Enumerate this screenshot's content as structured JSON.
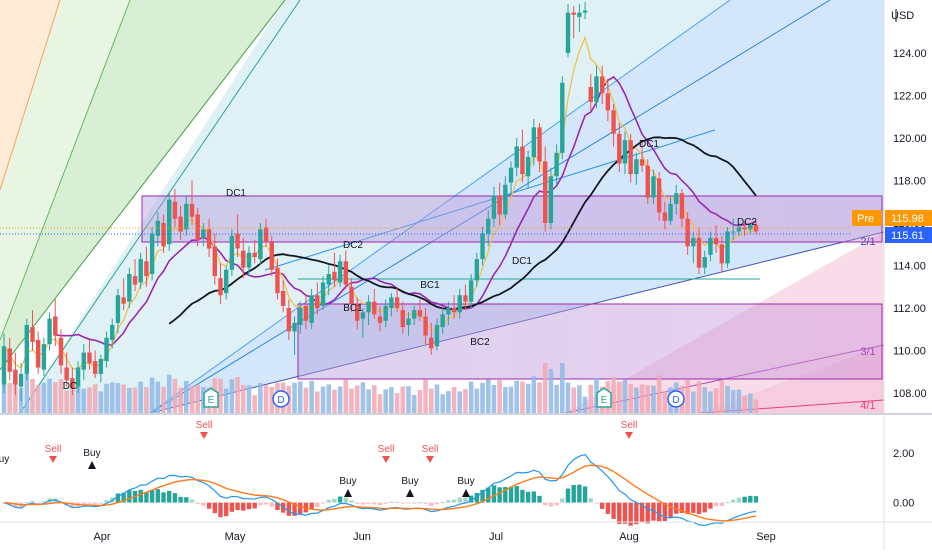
{
  "chart_data": [
    {
      "type": "candlestick",
      "panel": "price",
      "currency_label": "USD",
      "y_axis": {
        "ticks": [
          124.0,
          122.0,
          120.0,
          118.0,
          116.0,
          114.0,
          112.0,
          110.0,
          108.0
        ],
        "range": [
          107.2,
          126.4
        ]
      },
      "x_axis": {
        "labels": [
          "Apr",
          "May",
          "Jun",
          "Jul",
          "Aug",
          "Sep"
        ],
        "bar_count": 133
      },
      "candles": [
        [
          108.4,
          110.8,
          108.0,
          110.2
        ],
        [
          110.1,
          110.6,
          108.6,
          109.0
        ],
        [
          109.1,
          109.9,
          107.9,
          108.4
        ],
        [
          108.3,
          109.4,
          107.6,
          108.9
        ],
        [
          108.9,
          111.5,
          108.6,
          111.2
        ],
        [
          111.1,
          111.9,
          110.0,
          110.4
        ],
        [
          110.5,
          110.9,
          108.9,
          109.2
        ],
        [
          109.1,
          110.6,
          108.8,
          110.3
        ],
        [
          110.3,
          111.8,
          110.0,
          111.5
        ],
        [
          111.6,
          112.4,
          110.2,
          110.7
        ],
        [
          110.6,
          111.0,
          108.9,
          109.3
        ],
        [
          109.2,
          109.9,
          108.3,
          108.6
        ],
        [
          108.7,
          109.2,
          107.9,
          108.2
        ],
        [
          108.3,
          109.5,
          108.0,
          109.2
        ],
        [
          109.1,
          110.3,
          108.6,
          109.9
        ],
        [
          109.9,
          110.5,
          109.1,
          109.4
        ],
        [
          109.5,
          110.0,
          108.7,
          108.9
        ],
        [
          108.9,
          109.8,
          108.5,
          109.6
        ],
        [
          109.5,
          110.9,
          109.2,
          110.6
        ],
        [
          110.5,
          111.5,
          110.1,
          111.2
        ],
        [
          111.3,
          112.9,
          110.8,
          112.6
        ],
        [
          112.5,
          113.4,
          111.9,
          112.2
        ],
        [
          112.3,
          113.9,
          112.0,
          113.6
        ],
        [
          113.5,
          114.3,
          112.8,
          113.1
        ],
        [
          113.2,
          114.6,
          112.9,
          114.3
        ],
        [
          114.2,
          114.9,
          113.0,
          113.5
        ],
        [
          113.6,
          115.8,
          113.3,
          115.5
        ],
        [
          115.4,
          116.5,
          114.9,
          116.1
        ],
        [
          116.0,
          116.4,
          114.6,
          114.9
        ],
        [
          115.0,
          117.4,
          114.7,
          117.1
        ],
        [
          117.0,
          117.6,
          115.8,
          116.2
        ],
        [
          116.3,
          116.8,
          115.2,
          115.6
        ],
        [
          115.7,
          117.3,
          115.4,
          116.9
        ],
        [
          116.9,
          118.0,
          115.9,
          116.3
        ],
        [
          116.4,
          116.7,
          114.9,
          115.2
        ],
        [
          115.3,
          116.0,
          114.9,
          115.7
        ],
        [
          115.7,
          116.2,
          114.4,
          114.8
        ],
        [
          114.9,
          115.5,
          113.1,
          113.5
        ],
        [
          113.4,
          114.1,
          112.2,
          112.6
        ],
        [
          112.7,
          114.0,
          112.4,
          113.8
        ],
        [
          113.8,
          115.7,
          113.5,
          115.4
        ],
        [
          115.5,
          116.4,
          114.4,
          114.8
        ],
        [
          114.7,
          115.3,
          113.4,
          113.9
        ],
        [
          113.9,
          114.9,
          113.5,
          114.6
        ],
        [
          114.6,
          115.2,
          114.1,
          114.4
        ],
        [
          114.3,
          116.0,
          114.0,
          115.7
        ],
        [
          115.8,
          116.2,
          114.9,
          115.1
        ],
        [
          115.1,
          115.4,
          113.5,
          113.8
        ],
        [
          113.9,
          114.3,
          112.4,
          112.7
        ],
        [
          112.8,
          113.3,
          111.8,
          112.1
        ],
        [
          112.0,
          112.4,
          110.5,
          110.9
        ],
        [
          110.9,
          111.6,
          109.8,
          111.3
        ],
        [
          111.2,
          112.3,
          110.8,
          112.0
        ],
        [
          112.1,
          112.6,
          111.0,
          111.4
        ],
        [
          111.3,
          112.9,
          111.0,
          112.6
        ],
        [
          112.6,
          113.2,
          111.7,
          112.0
        ],
        [
          112.1,
          113.5,
          111.9,
          113.2
        ],
        [
          113.1,
          114.0,
          112.6,
          113.6
        ],
        [
          113.7,
          114.6,
          113.0,
          113.3
        ],
        [
          113.2,
          114.5,
          113.0,
          114.2
        ],
        [
          114.2,
          114.7,
          112.9,
          113.1
        ],
        [
          113.0,
          113.4,
          111.8,
          112.2
        ],
        [
          112.2,
          112.5,
          111.0,
          111.4
        ],
        [
          111.5,
          112.0,
          110.6,
          111.8
        ],
        [
          111.8,
          112.6,
          111.2,
          112.3
        ],
        [
          112.3,
          112.9,
          111.5,
          111.7
        ],
        [
          111.6,
          112.1,
          110.9,
          111.3
        ],
        [
          111.4,
          112.4,
          111.1,
          112.1
        ],
        [
          112.0,
          112.7,
          111.6,
          112.5
        ],
        [
          112.5,
          113.0,
          111.8,
          112.0
        ],
        [
          111.9,
          112.3,
          110.8,
          111.1
        ],
        [
          111.2,
          111.8,
          110.7,
          111.5
        ],
        [
          111.5,
          112.1,
          111.2,
          111.9
        ],
        [
          111.9,
          112.4,
          111.4,
          111.6
        ],
        [
          111.6,
          112.0,
          110.3,
          110.7
        ],
        [
          110.6,
          111.3,
          109.8,
          110.1
        ],
        [
          110.2,
          111.5,
          110.0,
          111.2
        ],
        [
          111.1,
          112.0,
          110.8,
          111.7
        ],
        [
          111.7,
          112.3,
          111.2,
          112.0
        ],
        [
          112.0,
          112.6,
          111.5,
          111.8
        ],
        [
          111.8,
          112.9,
          111.5,
          112.6
        ],
        [
          112.6,
          113.1,
          111.9,
          112.3
        ],
        [
          112.3,
          113.6,
          112.0,
          113.3
        ],
        [
          113.3,
          114.6,
          113.0,
          114.3
        ],
        [
          114.3,
          115.8,
          114.0,
          115.5
        ],
        [
          115.5,
          116.6,
          114.9,
          116.2
        ],
        [
          116.2,
          117.7,
          115.8,
          117.3
        ],
        [
          117.3,
          117.9,
          115.9,
          116.4
        ],
        [
          116.4,
          118.2,
          116.2,
          117.8
        ],
        [
          117.9,
          118.9,
          117.3,
          118.6
        ],
        [
          118.6,
          120.0,
          118.2,
          119.6
        ],
        [
          119.6,
          120.4,
          117.9,
          118.3
        ],
        [
          118.2,
          119.4,
          117.6,
          119.1
        ],
        [
          119.1,
          120.9,
          118.7,
          120.5
        ],
        [
          120.5,
          120.7,
          118.4,
          118.9
        ],
        [
          118.9,
          119.6,
          115.6,
          116.0
        ],
        [
          116.0,
          118.6,
          115.7,
          118.2
        ],
        [
          118.2,
          119.7,
          117.8,
          119.3
        ],
        [
          119.3,
          122.9,
          119.0,
          122.6
        ],
        [
          124.0,
          126.3,
          123.8,
          125.9
        ],
        [
          125.9,
          126.2,
          124.7,
          125.8
        ],
        [
          125.7,
          126.3,
          125.0,
          125.9
        ],
        [
          125.9,
          126.4,
          125.6,
          126.0
        ],
        [
          122.4,
          123.0,
          121.3,
          121.7
        ],
        [
          121.7,
          123.4,
          121.4,
          122.9
        ],
        [
          122.9,
          123.4,
          121.6,
          122.1
        ],
        [
          122.1,
          122.8,
          120.8,
          121.3
        ],
        [
          121.3,
          121.6,
          119.6,
          120.2
        ],
        [
          120.2,
          120.7,
          118.4,
          118.8
        ],
        [
          118.8,
          120.3,
          118.3,
          119.9
        ],
        [
          119.9,
          120.2,
          117.9,
          118.3
        ],
        [
          118.3,
          119.3,
          117.8,
          119.0
        ],
        [
          119.0,
          119.8,
          118.4,
          118.7
        ],
        [
          118.7,
          119.0,
          116.9,
          117.2
        ],
        [
          117.2,
          118.5,
          116.9,
          118.2
        ],
        [
          118.1,
          118.4,
          116.1,
          116.5
        ],
        [
          116.5,
          117.0,
          115.7,
          116.1
        ],
        [
          116.1,
          117.2,
          115.9,
          116.9
        ],
        [
          116.9,
          117.8,
          116.4,
          117.4
        ],
        [
          117.4,
          117.6,
          115.8,
          116.2
        ],
        [
          116.2,
          116.5,
          114.5,
          114.9
        ],
        [
          114.9,
          115.6,
          114.1,
          115.3
        ],
        [
          115.3,
          115.8,
          113.6,
          113.9
        ],
        [
          113.9,
          114.7,
          113.6,
          114.4
        ],
        [
          114.5,
          115.6,
          114.2,
          115.3
        ],
        [
          115.3,
          115.9,
          114.6,
          115.0
        ],
        [
          115.0,
          115.4,
          113.7,
          114.1
        ],
        [
          114.1,
          115.8,
          113.9,
          115.6
        ],
        [
          115.6,
          116.2,
          115.2,
          115.6
        ],
        [
          115.6,
          116.0,
          115.4,
          115.8
        ],
        [
          115.8,
          116.1,
          115.4,
          115.7
        ],
        [
          115.7,
          116.0,
          115.5,
          115.9
        ],
        [
          115.9,
          116.1,
          115.5,
          115.6
        ]
      ],
      "price_labels": {
        "premarket_tag": "Pre",
        "premarket_price": "115.98",
        "last_price": "115.61"
      },
      "annotations": [
        "DC1",
        "DC2",
        "DC1",
        "BC1",
        "BC1",
        "BC2",
        "DC1",
        "DC2",
        "DC"
      ],
      "events": [
        "E",
        "D",
        "E",
        "D"
      ],
      "fan_ratios": [
        "2/1",
        "3/1",
        "4/1"
      ]
    },
    {
      "type": "line+bar",
      "panel": "oscillator",
      "y_axis": {
        "ticks": [
          2.0,
          0.0
        ],
        "tick_labels": [
          "2.00",
          "0.00"
        ],
        "range": [
          -0.7,
          3.4
        ]
      },
      "signals": [
        "Sell",
        "Buy",
        "Sell",
        "Buy",
        "Sell",
        "Buy",
        "Sell",
        "Buy",
        "Sell",
        "Buy",
        "Sell"
      ]
    }
  ],
  "colors": {
    "up": "#26a69a",
    "down": "#ef5350",
    "sma": "#131722",
    "ema_fast": "#f0c04a",
    "envelope": "#9c27b0",
    "fib_blue": "#2196f3",
    "signal_line": "#ff7a1a",
    "osc_line": "#2196f3",
    "pre_tag": "#ff9800",
    "last_tag": "#2962ff"
  }
}
